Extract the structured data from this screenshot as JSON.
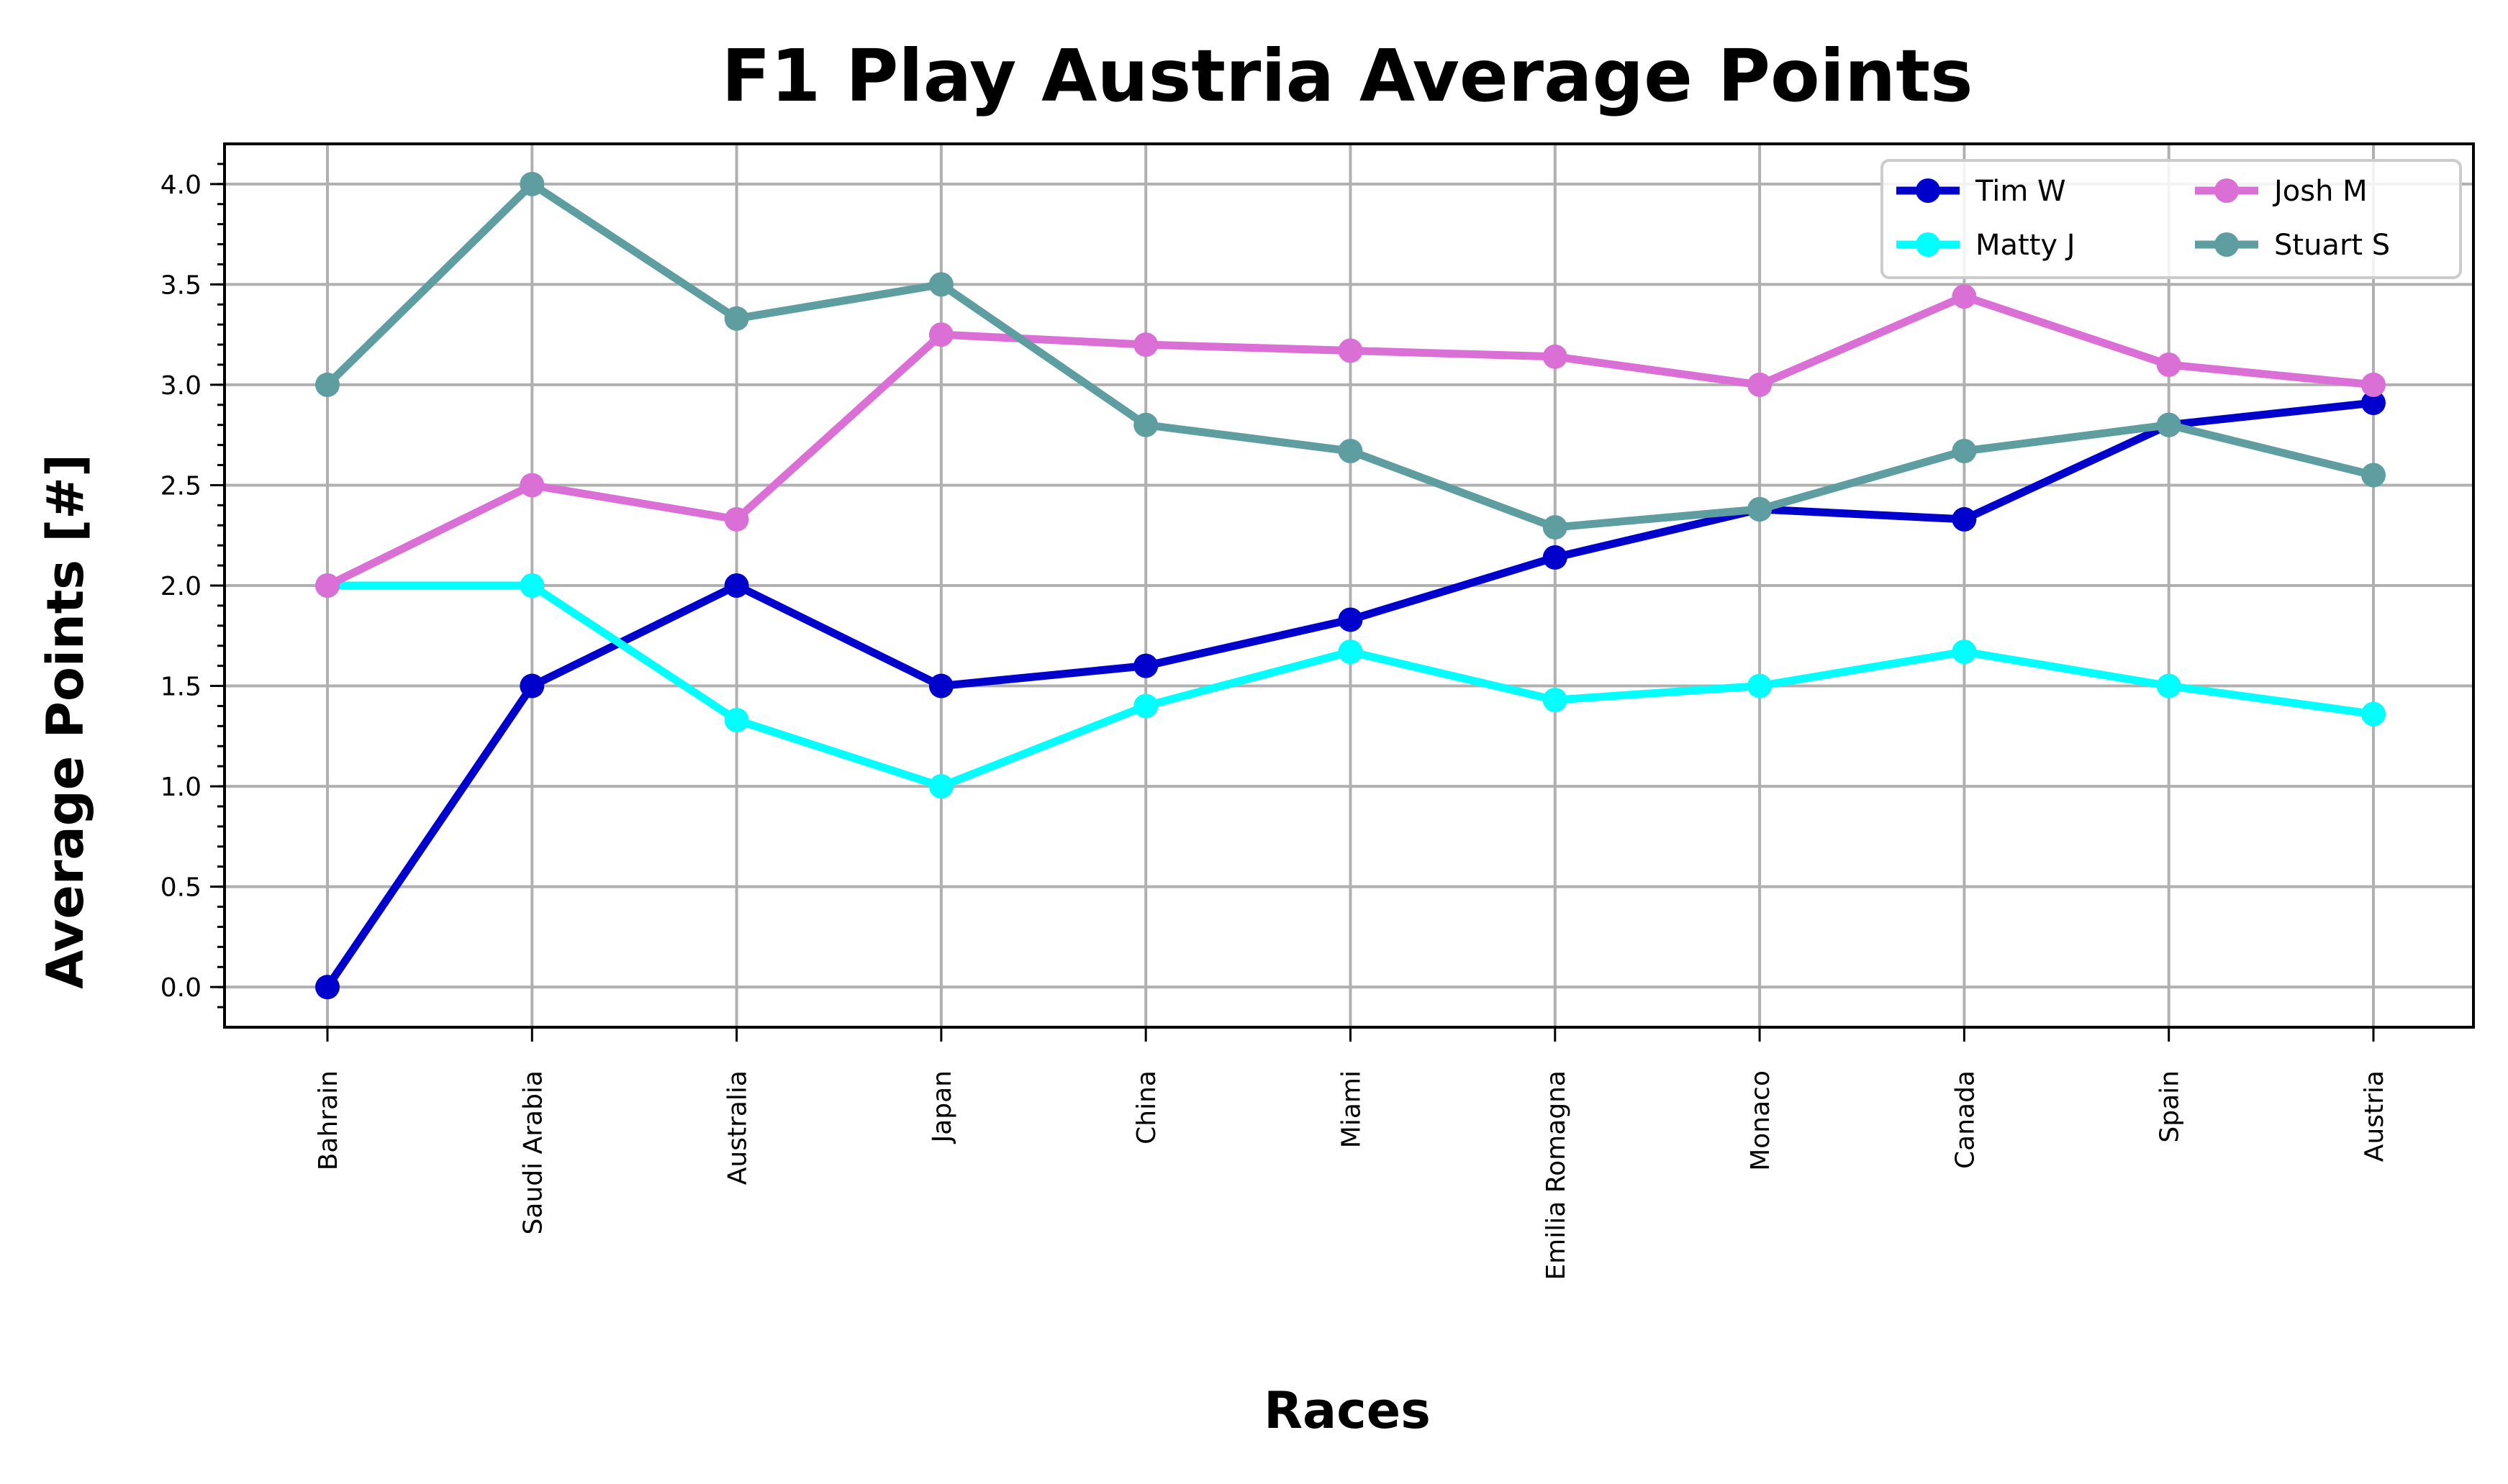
{
  "chart_data": {
    "type": "line",
    "title": "F1 Play Austria Average Points",
    "xlabel": "Races",
    "ylabel": "Average Points [#]",
    "categories": [
      "Bahrain",
      "Saudi Arabia",
      "Australia",
      "Japan",
      "China",
      "Miami",
      "Emilia Romagna",
      "Monaco",
      "Canada",
      "Spain",
      "Austria"
    ],
    "ylim": [
      -0.2,
      4.2
    ],
    "yticks": [
      0.0,
      0.5,
      1.0,
      1.5,
      2.0,
      2.5,
      3.0,
      3.5,
      4.0
    ],
    "ytick_labels": [
      "0.0",
      "0.5",
      "1.0",
      "1.5",
      "2.0",
      "2.5",
      "3.0",
      "3.5",
      "4.0"
    ],
    "grid": true,
    "legend_position": "top-right",
    "series": [
      {
        "name": "Tim W",
        "color": "#0000cd",
        "values": [
          0.0,
          1.5,
          2.0,
          1.5,
          1.6,
          1.83,
          2.14,
          2.38,
          2.33,
          2.8,
          2.91
        ]
      },
      {
        "name": "Matty J",
        "color": "#00ffff",
        "values": [
          2.0,
          2.0,
          1.33,
          1.0,
          1.4,
          1.67,
          1.43,
          1.5,
          1.67,
          1.5,
          1.36
        ]
      },
      {
        "name": "Josh M",
        "color": "#da70d6",
        "values": [
          2.0,
          2.5,
          2.33,
          3.25,
          3.2,
          3.17,
          3.14,
          3.0,
          3.44,
          3.1,
          3.0
        ]
      },
      {
        "name": "Stuart S",
        "color": "#5f9ea0",
        "values": [
          3.0,
          4.0,
          3.33,
          3.5,
          2.8,
          2.67,
          2.29,
          2.38,
          2.67,
          2.8,
          2.55
        ]
      }
    ]
  }
}
